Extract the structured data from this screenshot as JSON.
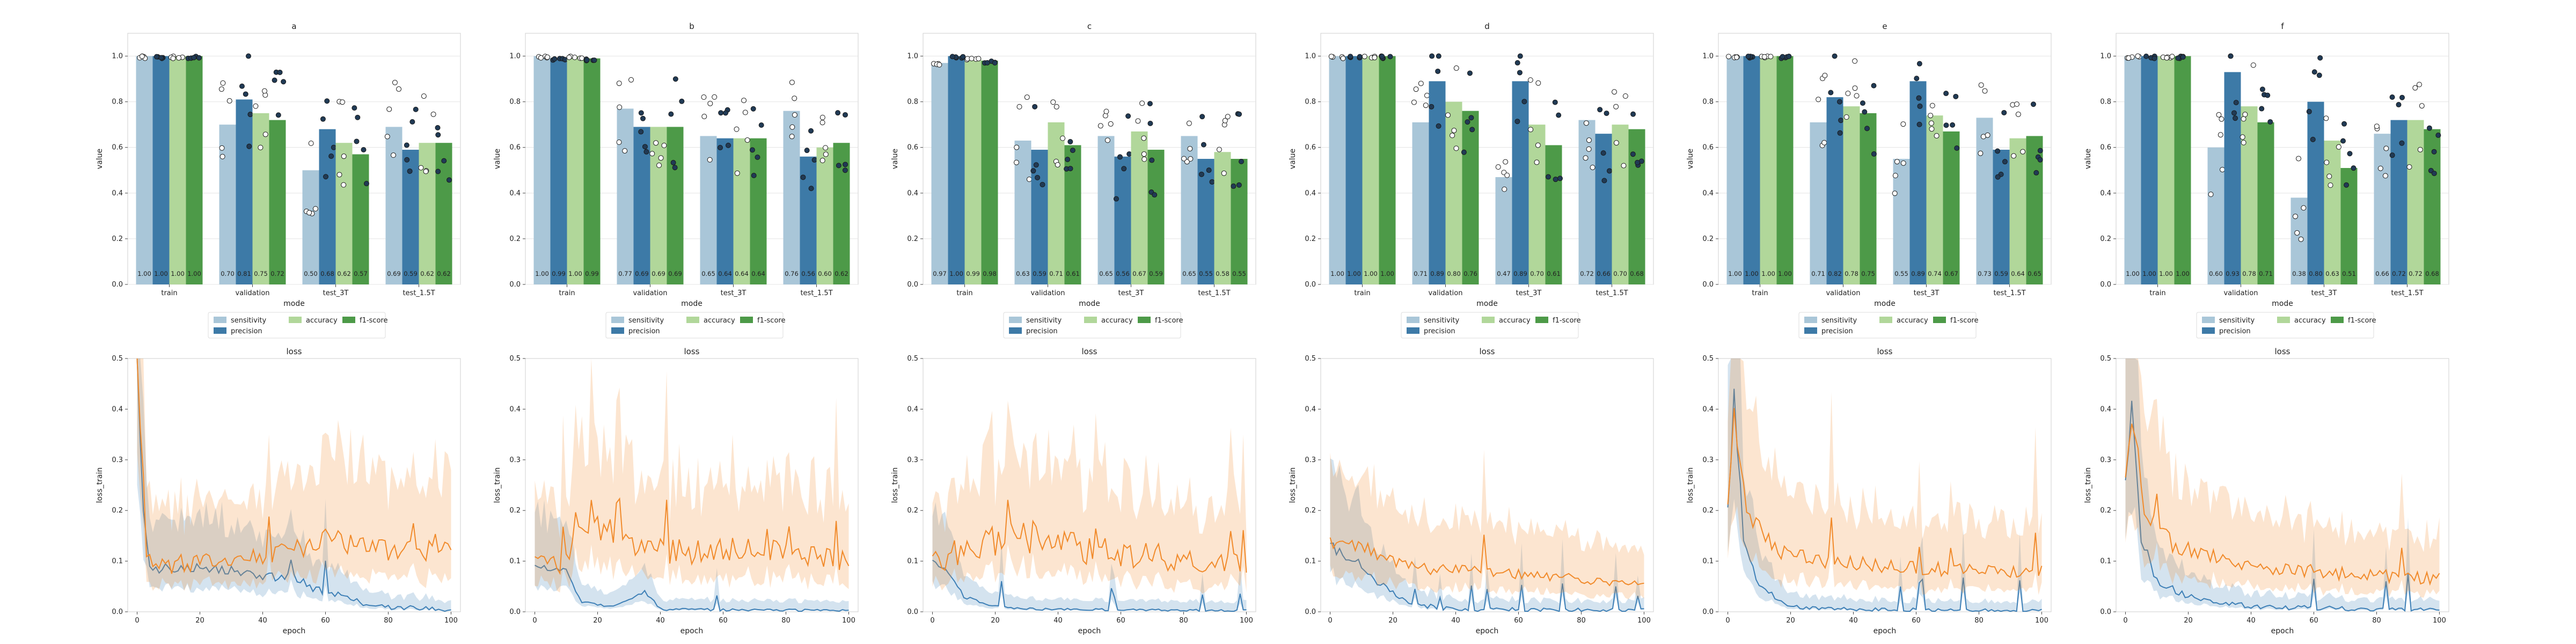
{
  "colors": {
    "sensitivity": "#a9c6d8",
    "precision": "#3d7aa7",
    "accuracy": "#b1d79a",
    "f1-score": "#4d9a48",
    "loss_train_blue": "#3d7fb6",
    "loss_orange": "#f18a2a",
    "grid": "#e4e4e4",
    "frame": "#cfcfcf"
  },
  "legend": {
    "labels": [
      "sensitivity",
      "precision",
      "accuracy",
      "f1-score"
    ]
  },
  "chart_data": [
    {
      "type": "bar",
      "title": "a",
      "xlabel": "mode",
      "ylabel": "value",
      "ylim": [
        0,
        1.1
      ],
      "categories": [
        "train",
        "validation",
        "test_3T",
        "test_1.5T"
      ],
      "yticks": [
        "0.0",
        "0.2",
        "0.4",
        "0.6",
        "0.8",
        "1.0"
      ],
      "series": [
        {
          "name": "sensitivity",
          "values": [
            1.0,
            0.7,
            0.5,
            0.69
          ],
          "labels": [
            "1.00",
            "0.70",
            "0.50",
            "0.69"
          ]
        },
        {
          "name": "precision",
          "values": [
            1.0,
            0.81,
            0.68,
            0.59
          ],
          "labels": [
            "1.00",
            "0.81",
            "0.68",
            "0.59"
          ]
        },
        {
          "name": "accuracy",
          "values": [
            1.0,
            0.75,
            0.62,
            0.62
          ],
          "labels": [
            "1.00",
            "0.75",
            "0.62",
            "0.62"
          ]
        },
        {
          "name": "f1-score",
          "values": [
            1.0,
            0.72,
            0.57,
            0.62
          ],
          "labels": [
            "1.00",
            "0.72",
            "0.57",
            "0.62"
          ]
        }
      ]
    },
    {
      "type": "bar",
      "title": "b",
      "xlabel": "mode",
      "ylabel": "value",
      "ylim": [
        0,
        1.1
      ],
      "categories": [
        "train",
        "validation",
        "test_3T",
        "test_1.5T"
      ],
      "yticks": [
        "0.0",
        "0.2",
        "0.4",
        "0.6",
        "0.8",
        "1.0"
      ],
      "series": [
        {
          "name": "sensitivity",
          "values": [
            1.0,
            0.77,
            0.65,
            0.76
          ],
          "labels": [
            "1.00",
            "0.77",
            "0.65",
            "0.76"
          ]
        },
        {
          "name": "precision",
          "values": [
            0.99,
            0.69,
            0.64,
            0.56
          ],
          "labels": [
            "0.99",
            "0.69",
            "0.64",
            "0.56"
          ]
        },
        {
          "name": "accuracy",
          "values": [
            1.0,
            0.69,
            0.64,
            0.6
          ],
          "labels": [
            "1.00",
            "0.69",
            "0.64",
            "0.60"
          ]
        },
        {
          "name": "f1-score",
          "values": [
            0.99,
            0.69,
            0.64,
            0.62
          ],
          "labels": [
            "0.99",
            "0.69",
            "0.64",
            "0.62"
          ]
        }
      ]
    },
    {
      "type": "bar",
      "title": "c",
      "xlabel": "mode",
      "ylabel": "value",
      "ylim": [
        0,
        1.1
      ],
      "categories": [
        "train",
        "validation",
        "test_3T",
        "test_1.5T"
      ],
      "yticks": [
        "0.0",
        "0.2",
        "0.4",
        "0.6",
        "0.8",
        "1.0"
      ],
      "series": [
        {
          "name": "sensitivity",
          "values": [
            0.97,
            0.63,
            0.65,
            0.65
          ],
          "labels": [
            "0.97",
            "0.63",
            "0.65",
            "0.65"
          ]
        },
        {
          "name": "precision",
          "values": [
            1.0,
            0.59,
            0.56,
            0.55
          ],
          "labels": [
            "1.00",
            "0.59",
            "0.56",
            "0.55"
          ]
        },
        {
          "name": "accuracy",
          "values": [
            0.99,
            0.71,
            0.67,
            0.58
          ],
          "labels": [
            "0.99",
            "0.71",
            "0.67",
            "0.58"
          ]
        },
        {
          "name": "f1-score",
          "values": [
            0.98,
            0.61,
            0.59,
            0.55
          ],
          "labels": [
            "0.98",
            "0.61",
            "0.59",
            "0.55"
          ]
        }
      ]
    },
    {
      "type": "bar",
      "title": "d",
      "xlabel": "mode",
      "ylabel": "value",
      "ylim": [
        0,
        1.1
      ],
      "categories": [
        "train",
        "validation",
        "test_3T",
        "test_1.5T"
      ],
      "yticks": [
        "0.0",
        "0.2",
        "0.4",
        "0.6",
        "0.8",
        "1.0"
      ],
      "series": [
        {
          "name": "sensitivity",
          "values": [
            1.0,
            0.71,
            0.47,
            0.72
          ],
          "labels": [
            "1.00",
            "0.71",
            "0.47",
            "0.72"
          ]
        },
        {
          "name": "precision",
          "values": [
            1.0,
            0.89,
            0.89,
            0.66
          ],
          "labels": [
            "1.00",
            "0.89",
            "0.89",
            "0.66"
          ]
        },
        {
          "name": "accuracy",
          "values": [
            1.0,
            0.8,
            0.7,
            0.7
          ],
          "labels": [
            "1.00",
            "0.80",
            "0.70",
            "0.70"
          ]
        },
        {
          "name": "f1-score",
          "values": [
            1.0,
            0.76,
            0.61,
            0.68
          ],
          "labels": [
            "1.00",
            "0.76",
            "0.61",
            "0.68"
          ]
        }
      ]
    },
    {
      "type": "bar",
      "title": "e",
      "xlabel": "mode",
      "ylabel": "value",
      "ylim": [
        0,
        1.1
      ],
      "categories": [
        "train",
        "validation",
        "test_3T",
        "test_1.5T"
      ],
      "yticks": [
        "0.0",
        "0.2",
        "0.4",
        "0.6",
        "0.8",
        "1.0"
      ],
      "series": [
        {
          "name": "sensitivity",
          "values": [
            1.0,
            0.71,
            0.55,
            0.73
          ],
          "labels": [
            "1.00",
            "0.71",
            "0.55",
            "0.73"
          ]
        },
        {
          "name": "precision",
          "values": [
            1.0,
            0.82,
            0.89,
            0.59
          ],
          "labels": [
            "1.00",
            "0.82",
            "0.89",
            "0.59"
          ]
        },
        {
          "name": "accuracy",
          "values": [
            1.0,
            0.78,
            0.74,
            0.64
          ],
          "labels": [
            "1.00",
            "0.78",
            "0.74",
            "0.64"
          ]
        },
        {
          "name": "f1-score",
          "values": [
            1.0,
            0.75,
            0.67,
            0.65
          ],
          "labels": [
            "1.00",
            "0.75",
            "0.67",
            "0.65"
          ]
        }
      ]
    },
    {
      "type": "bar",
      "title": "f",
      "xlabel": "mode",
      "ylabel": "value",
      "ylim": [
        0,
        1.1
      ],
      "categories": [
        "train",
        "validation",
        "test_3T",
        "test_1.5T"
      ],
      "yticks": [
        "0.0",
        "0.2",
        "0.4",
        "0.6",
        "0.8",
        "1.0"
      ],
      "series": [
        {
          "name": "sensitivity",
          "values": [
            1.0,
            0.6,
            0.38,
            0.66
          ],
          "labels": [
            "1.00",
            "0.60",
            "0.38",
            "0.66"
          ]
        },
        {
          "name": "precision",
          "values": [
            1.0,
            0.93,
            0.8,
            0.72
          ],
          "labels": [
            "1.00",
            "0.93",
            "0.80",
            "0.72"
          ]
        },
        {
          "name": "accuracy",
          "values": [
            1.0,
            0.78,
            0.63,
            0.72
          ],
          "labels": [
            "1.00",
            "0.78",
            "0.63",
            "0.72"
          ]
        },
        {
          "name": "f1-score",
          "values": [
            1.0,
            0.71,
            0.51,
            0.68
          ],
          "labels": [
            "1.00",
            "0.71",
            "0.51",
            "0.68"
          ]
        }
      ]
    },
    {
      "type": "line",
      "title": "loss",
      "xlabel": "epoch",
      "ylabel": "loss_train",
      "xlim": [
        -3,
        103
      ],
      "ylim": [
        0,
        0.5
      ],
      "xticks": [
        "0",
        "20",
        "40",
        "60",
        "80",
        "100"
      ],
      "yticks": [
        "0.0",
        "0.1",
        "0.2",
        "0.3",
        "0.4",
        "0.5"
      ],
      "series": [
        {
          "key": "blue",
          "anchors": [
            [
              0,
              0.5
            ],
            [
              2,
              0.2
            ],
            [
              4,
              0.09
            ],
            [
              10,
              0.085
            ],
            [
              20,
              0.09
            ],
            [
              30,
              0.08
            ],
            [
              40,
              0.07
            ],
            [
              50,
              0.07
            ],
            [
              55,
              0.05
            ],
            [
              60,
              0.04
            ],
            [
              70,
              0.02
            ],
            [
              80,
              0.01
            ],
            [
              100,
              0.005
            ]
          ],
          "noise": 0.012
        },
        {
          "key": "orange",
          "anchors": [
            [
              0,
              0.5
            ],
            [
              3,
              0.12
            ],
            [
              5,
              0.085
            ],
            [
              20,
              0.1
            ],
            [
              40,
              0.11
            ],
            [
              55,
              0.13
            ],
            [
              60,
              0.15
            ],
            [
              70,
              0.13
            ],
            [
              80,
              0.12
            ],
            [
              100,
              0.12
            ]
          ],
          "noise": 0.018
        }
      ]
    },
    {
      "type": "line",
      "title": "loss",
      "xlabel": "epoch",
      "ylabel": "loss_train",
      "xlim": [
        -3,
        103
      ],
      "ylim": [
        0,
        0.5
      ],
      "xticks": [
        "0",
        "20",
        "40",
        "60",
        "80",
        "100"
      ],
      "yticks": [
        "0.0",
        "0.1",
        "0.2",
        "0.3",
        "0.4",
        "0.5"
      ],
      "series": [
        {
          "key": "blue",
          "anchors": [
            [
              0,
              0.09
            ],
            [
              10,
              0.08
            ],
            [
              15,
              0.02
            ],
            [
              25,
              0.01
            ],
            [
              35,
              0.04
            ],
            [
              40,
              0.005
            ],
            [
              100,
              0.002
            ]
          ],
          "noise": 0.006
        },
        {
          "key": "orange",
          "anchors": [
            [
              0,
              0.1
            ],
            [
              10,
              0.1
            ],
            [
              15,
              0.2
            ],
            [
              30,
              0.13
            ],
            [
              50,
              0.12
            ],
            [
              80,
              0.12
            ],
            [
              100,
              0.1
            ]
          ],
          "noise": 0.025
        }
      ]
    },
    {
      "type": "line",
      "title": "loss",
      "xlabel": "epoch",
      "ylabel": "loss_train",
      "xlim": [
        -3,
        103
      ],
      "ylim": [
        0,
        0.5
      ],
      "xticks": [
        "0",
        "20",
        "40",
        "60",
        "80",
        "100"
      ],
      "yticks": [
        "0.0",
        "0.1",
        "0.2",
        "0.3",
        "0.4",
        "0.5"
      ],
      "series": [
        {
          "key": "blue",
          "anchors": [
            [
              0,
              0.1
            ],
            [
              5,
              0.08
            ],
            [
              10,
              0.03
            ],
            [
              20,
              0.01
            ],
            [
              35,
              0.005
            ],
            [
              100,
              0.002
            ]
          ],
          "noise": 0.005
        },
        {
          "key": "orange",
          "anchors": [
            [
              0,
              0.1
            ],
            [
              10,
              0.12
            ],
            [
              20,
              0.14
            ],
            [
              35,
              0.15
            ],
            [
              50,
              0.12
            ],
            [
              70,
              0.11
            ],
            [
              100,
              0.09
            ]
          ],
          "noise": 0.025
        }
      ]
    },
    {
      "type": "line",
      "title": "loss",
      "xlabel": "epoch",
      "ylabel": "loss_train",
      "xlim": [
        -3,
        103
      ],
      "ylim": [
        0,
        0.5
      ],
      "xticks": [
        "0",
        "20",
        "40",
        "60",
        "80",
        "100"
      ],
      "yticks": [
        "0.0",
        "0.1",
        "0.2",
        "0.3",
        "0.4",
        "0.5"
      ],
      "series": [
        {
          "key": "blue",
          "anchors": [
            [
              0,
              0.13
            ],
            [
              8,
              0.1
            ],
            [
              15,
              0.06
            ],
            [
              25,
              0.015
            ],
            [
              40,
              0.005
            ],
            [
              100,
              0.002
            ]
          ],
          "noise": 0.01
        },
        {
          "key": "orange",
          "anchors": [
            [
              0,
              0.14
            ],
            [
              10,
              0.13
            ],
            [
              20,
              0.1
            ],
            [
              30,
              0.085
            ],
            [
              50,
              0.08
            ],
            [
              80,
              0.065
            ],
            [
              100,
              0.055
            ]
          ],
          "noise": 0.012
        }
      ]
    },
    {
      "type": "line",
      "title": "loss",
      "xlabel": "epoch",
      "ylabel": "loss_train",
      "xlim": [
        -3,
        103
      ],
      "ylim": [
        0,
        0.5
      ],
      "xticks": [
        "0",
        "20",
        "40",
        "60",
        "80",
        "100"
      ],
      "yticks": [
        "0.0",
        "0.1",
        "0.2",
        "0.3",
        "0.4",
        "0.5"
      ],
      "series": [
        {
          "key": "blue",
          "anchors": [
            [
              0,
              0.2
            ],
            [
              2,
              0.42
            ],
            [
              5,
              0.15
            ],
            [
              10,
              0.05
            ],
            [
              20,
              0.01
            ],
            [
              40,
              0.005
            ],
            [
              100,
              0.002
            ]
          ],
          "noise": 0.008
        },
        {
          "key": "orange",
          "anchors": [
            [
              0,
              0.2
            ],
            [
              2,
              0.42
            ],
            [
              6,
              0.2
            ],
            [
              15,
              0.12
            ],
            [
              30,
              0.1
            ],
            [
              60,
              0.085
            ],
            [
              100,
              0.08
            ]
          ],
          "noise": 0.015
        }
      ]
    },
    {
      "type": "line",
      "title": "loss",
      "xlabel": "epoch",
      "ylabel": "loss_train",
      "xlim": [
        -3,
        103
      ],
      "ylim": [
        0,
        0.5
      ],
      "xticks": [
        "0",
        "20",
        "40",
        "60",
        "80",
        "100"
      ],
      "yticks": [
        "0.0",
        "0.1",
        "0.2",
        "0.3",
        "0.4",
        "0.5"
      ],
      "series": [
        {
          "key": "blue",
          "anchors": [
            [
              0,
              0.25
            ],
            [
              2,
              0.4
            ],
            [
              5,
              0.15
            ],
            [
              10,
              0.06
            ],
            [
              20,
              0.03
            ],
            [
              40,
              0.01
            ],
            [
              100,
              0.003
            ]
          ],
          "noise": 0.01
        },
        {
          "key": "orange",
          "anchors": [
            [
              0,
              0.25
            ],
            [
              2,
              0.4
            ],
            [
              6,
              0.2
            ],
            [
              15,
              0.13
            ],
            [
              40,
              0.09
            ],
            [
              70,
              0.075
            ],
            [
              100,
              0.065
            ]
          ],
          "noise": 0.015
        }
      ]
    }
  ]
}
